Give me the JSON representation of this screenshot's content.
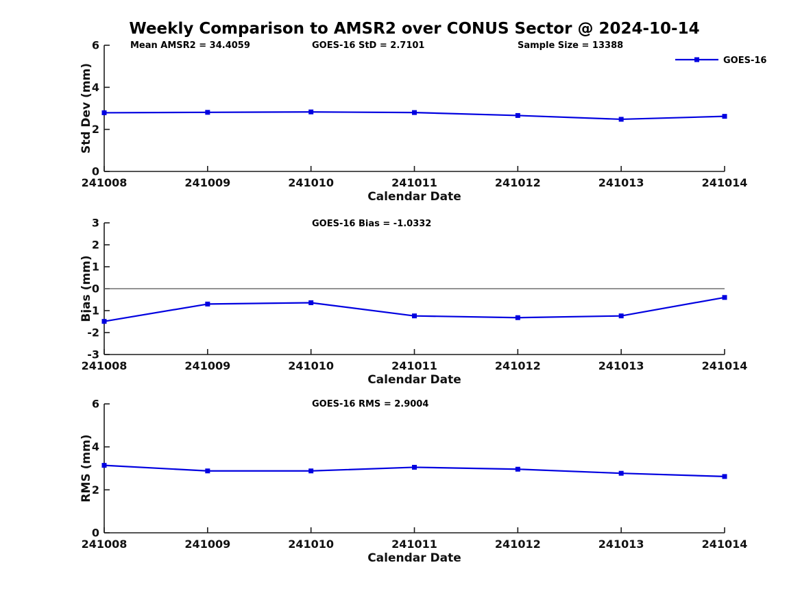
{
  "figure": {
    "title": "Weekly Comparison to AMSR2 over CONUS Sector @ 2024-10-14",
    "background": "#ffffff"
  },
  "colors": {
    "series": "#0000e0",
    "axis": "#1a1a1a",
    "text": "#000000",
    "zero_line": "#6e6e6e"
  },
  "chart_data": [
    {
      "type": "line",
      "name": "std-dev",
      "ylabel": "Std Dev (mm)",
      "xlabel": "Calendar Date",
      "ylim": [
        0,
        6
      ],
      "yticks": [
        0,
        2,
        4,
        6
      ],
      "ytick_labels": [
        "0",
        "2",
        "4",
        "6"
      ],
      "categories": [
        "241008",
        "241009",
        "241010",
        "241011",
        "241012",
        "241013",
        "241014"
      ],
      "annotations": [
        {
          "text": "Mean AMSR2 = 34.4059"
        },
        {
          "text": "GOES-16 StD = 2.7101"
        },
        {
          "text": "Sample Size = 13388"
        }
      ],
      "series": [
        {
          "name": "GOES-16",
          "values": [
            2.79,
            2.81,
            2.83,
            2.8,
            2.66,
            2.48,
            2.62
          ]
        }
      ],
      "legend": {
        "label": "GOES-16",
        "position": "top-right"
      },
      "grid": false,
      "zero_line": false
    },
    {
      "type": "line",
      "name": "bias",
      "ylabel": "Bias (mm)",
      "xlabel": "Calendar Date",
      "ylim": [
        -3,
        3
      ],
      "yticks": [
        -3,
        -2,
        -1,
        0,
        1,
        2,
        3
      ],
      "ytick_labels": [
        "-3",
        "-2",
        "-1",
        "0",
        "1",
        "2",
        "3"
      ],
      "categories": [
        "241008",
        "241009",
        "241010",
        "241011",
        "241012",
        "241013",
        "241014"
      ],
      "annotations": [
        {
          "text": "GOES-16 Bias  = -1.0332"
        }
      ],
      "series": [
        {
          "name": "GOES-16",
          "values": [
            -1.49,
            -0.7,
            -0.64,
            -1.24,
            -1.32,
            -1.24,
            -0.4
          ]
        }
      ],
      "grid": false,
      "zero_line": true
    },
    {
      "type": "line",
      "name": "rms",
      "ylabel": "RMS (mm)",
      "xlabel": "Calendar Date",
      "ylim": [
        0,
        6
      ],
      "yticks": [
        0,
        2,
        4,
        6
      ],
      "ytick_labels": [
        "0",
        "2",
        "4",
        "6"
      ],
      "categories": [
        "241008",
        "241009",
        "241010",
        "241011",
        "241012",
        "241013",
        "241014"
      ],
      "annotations": [
        {
          "text": "GOES-16 RMS = 2.9004"
        }
      ],
      "series": [
        {
          "name": "GOES-16",
          "values": [
            3.14,
            2.88,
            2.88,
            3.05,
            2.96,
            2.77,
            2.62
          ]
        }
      ],
      "grid": false,
      "zero_line": false
    }
  ]
}
